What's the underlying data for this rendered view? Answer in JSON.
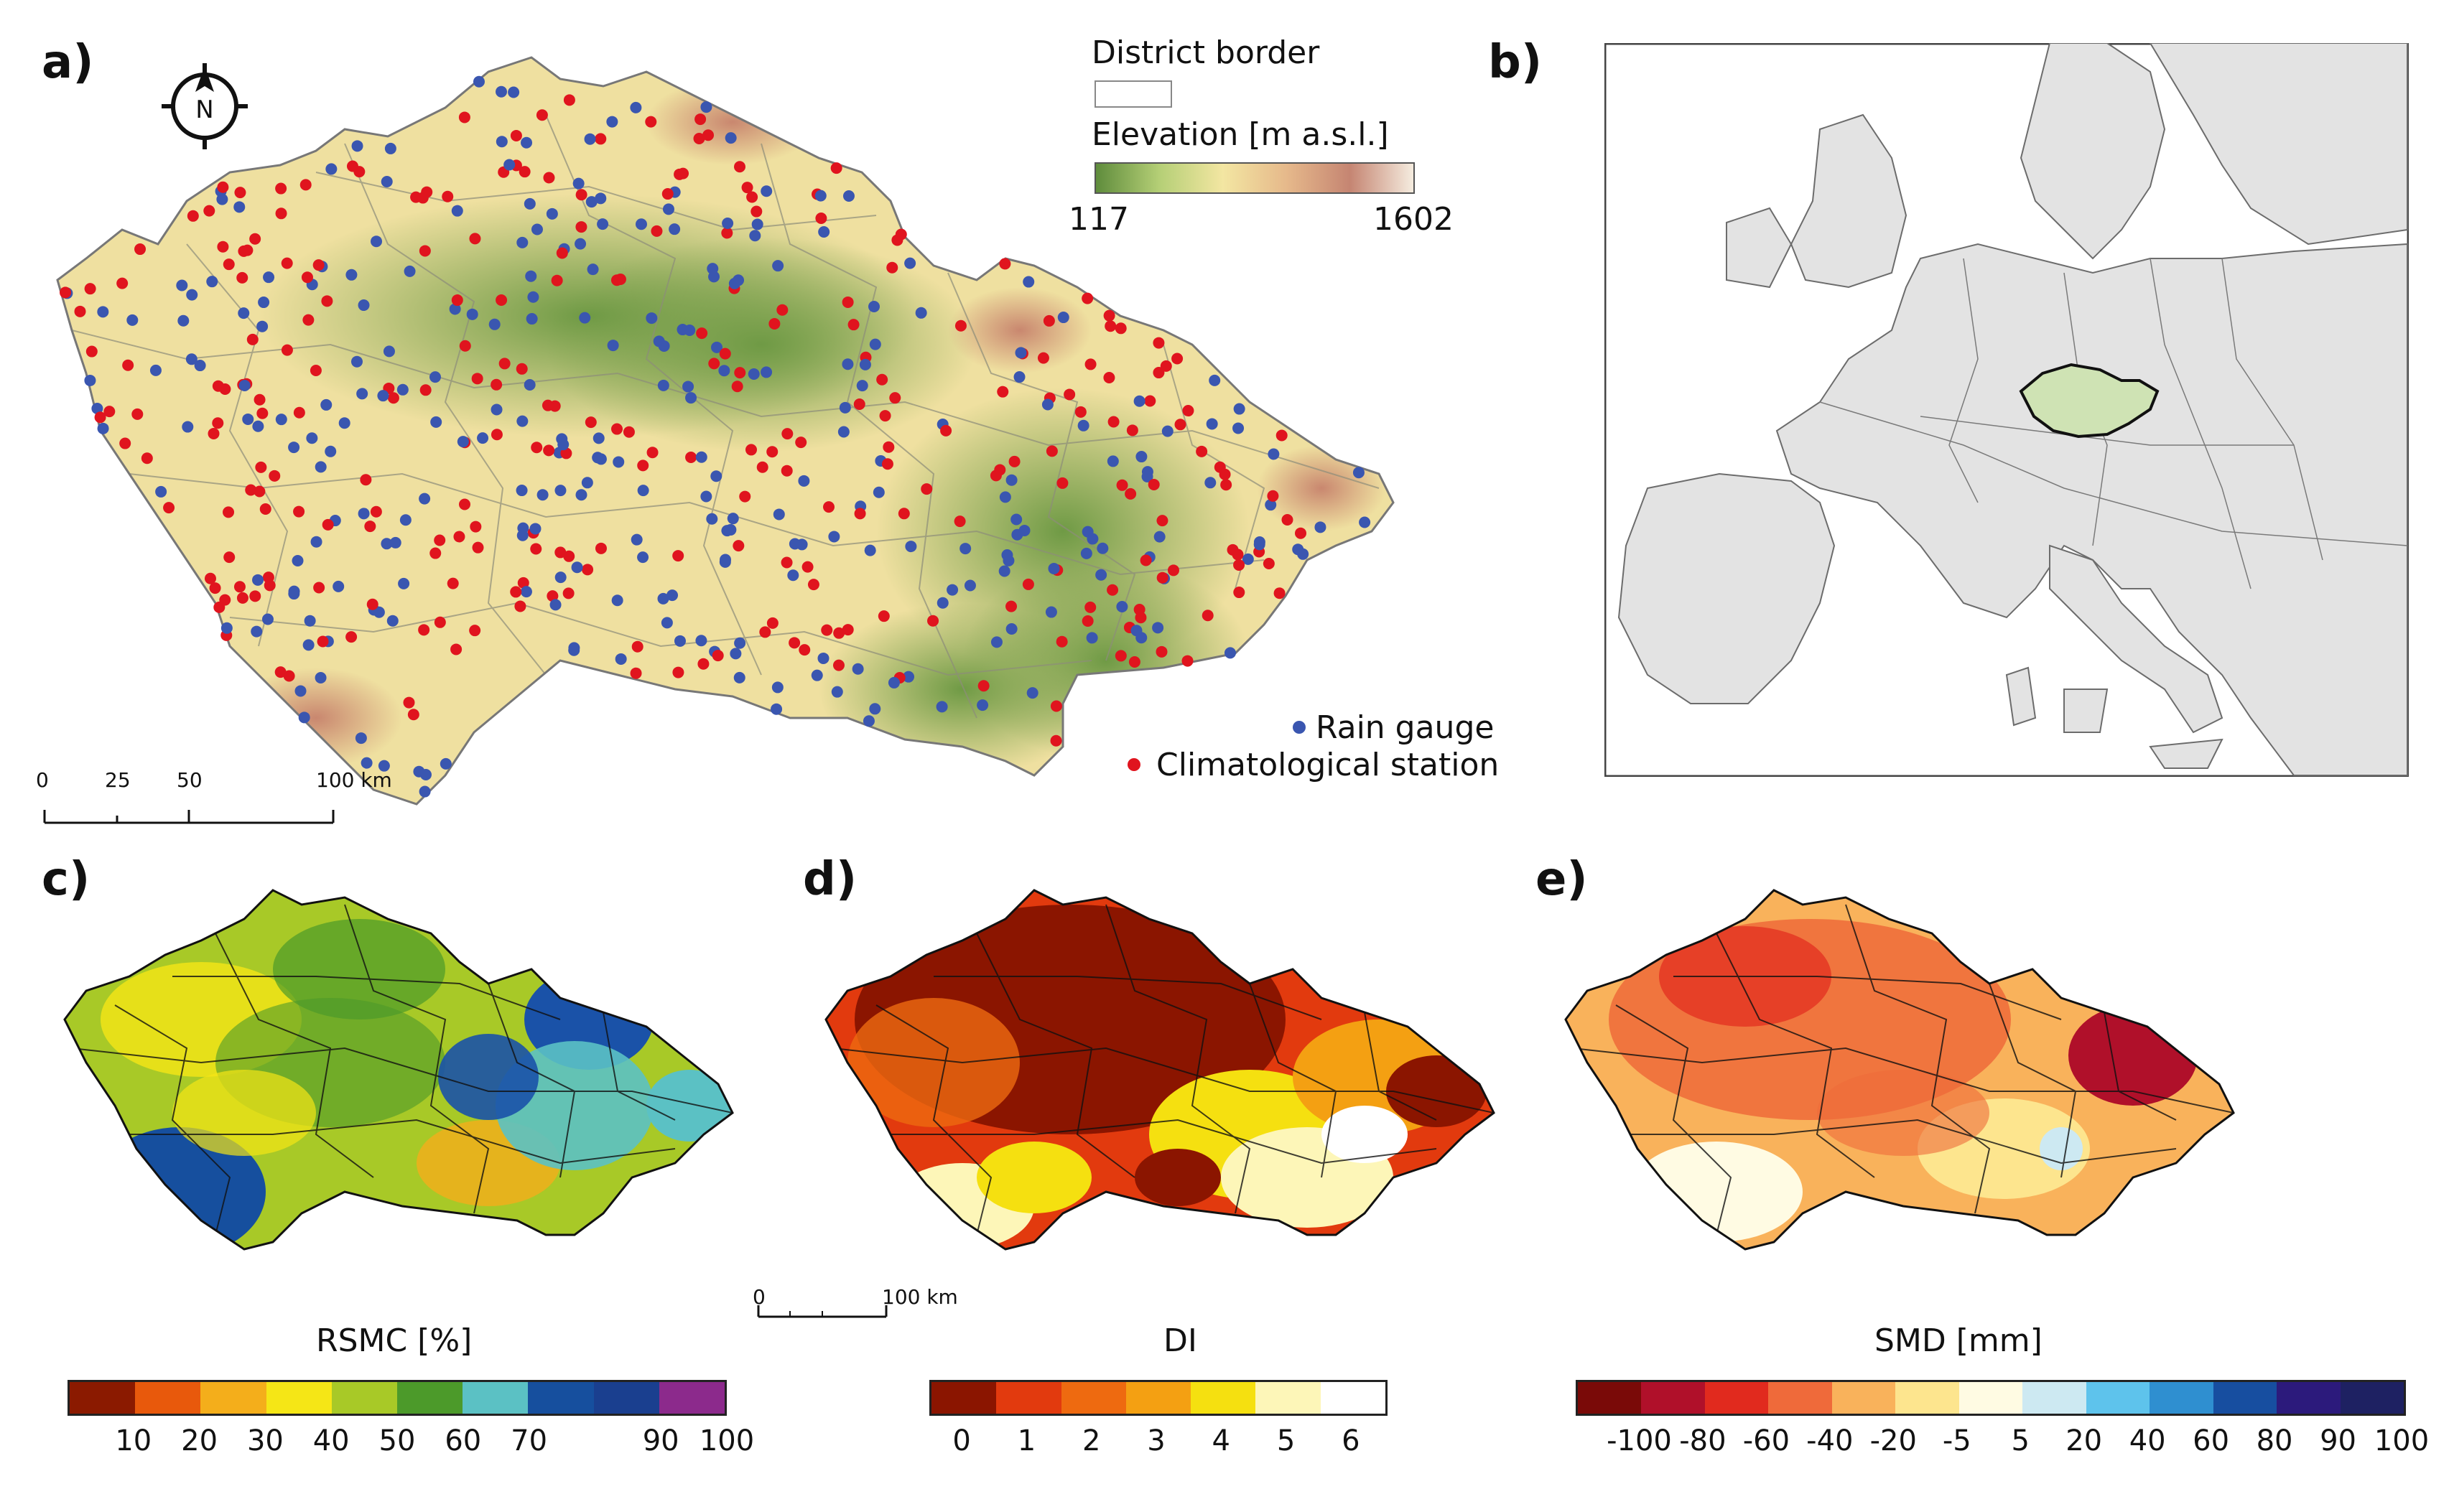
{
  "panels": {
    "a": "a)",
    "b": "b)",
    "c": "c)",
    "d": "d)",
    "e": "e)"
  },
  "panel_a": {
    "north_letter": "N",
    "legend_border_title": "District border",
    "legend_elev_title": "Elevation [m a.s.l.]",
    "elev_min": "117",
    "elev_max": "1602",
    "elev_colors": [
      "#5f8c3c",
      "#b5cf76",
      "#f3e6a2",
      "#e6b98b",
      "#c58572",
      "#f5ecdf"
    ],
    "rain_gauge": "Rain gauge",
    "climate_station": "Climatological station",
    "rain_color": "#3a56b0",
    "climate_color": "#e0141e",
    "scale_ticks": [
      "0",
      "25",
      "50",
      "100 km"
    ]
  },
  "panel_b": {
    "highlight_color": "#cfe3b4"
  },
  "panel_c": {
    "title": "RSMC [%]",
    "colors": [
      "#8b1a00",
      "#e8590c",
      "#f4ae1b",
      "#f5e616",
      "#a8c927",
      "#4c9a2a",
      "#5bc1c4",
      "#164f9e",
      "#1a3f8f",
      "#8c2a8c"
    ],
    "ticks": [
      "10",
      "20",
      "30",
      "40",
      "50",
      "60",
      "70",
      "90",
      "100"
    ]
  },
  "panel_d": {
    "title": "DI",
    "scale_ticks": [
      "0",
      "100 km"
    ],
    "colors": [
      "#8b1500",
      "#e23a0e",
      "#ee6a10",
      "#f4a012",
      "#f5e010",
      "#fdf6b8",
      "#ffffff"
    ],
    "ticks": [
      "0",
      "1",
      "2",
      "3",
      "4",
      "5",
      "6"
    ]
  },
  "panel_e": {
    "title": "SMD [mm]",
    "colors": [
      "#7a0a08",
      "#b0102a",
      "#e12a1e",
      "#ef6a3a",
      "#f9b25b",
      "#fde58e",
      "#fffbe3",
      "#cde9f2",
      "#5ec3ec",
      "#2f8fd0",
      "#174ea0",
      "#2c1a7c",
      "#1e2162"
    ],
    "ticks": [
      "-100",
      "-80",
      "-60",
      "-40",
      "-20",
      "-5",
      "5",
      "20",
      "40",
      "60",
      "80",
      "90",
      "100"
    ]
  }
}
